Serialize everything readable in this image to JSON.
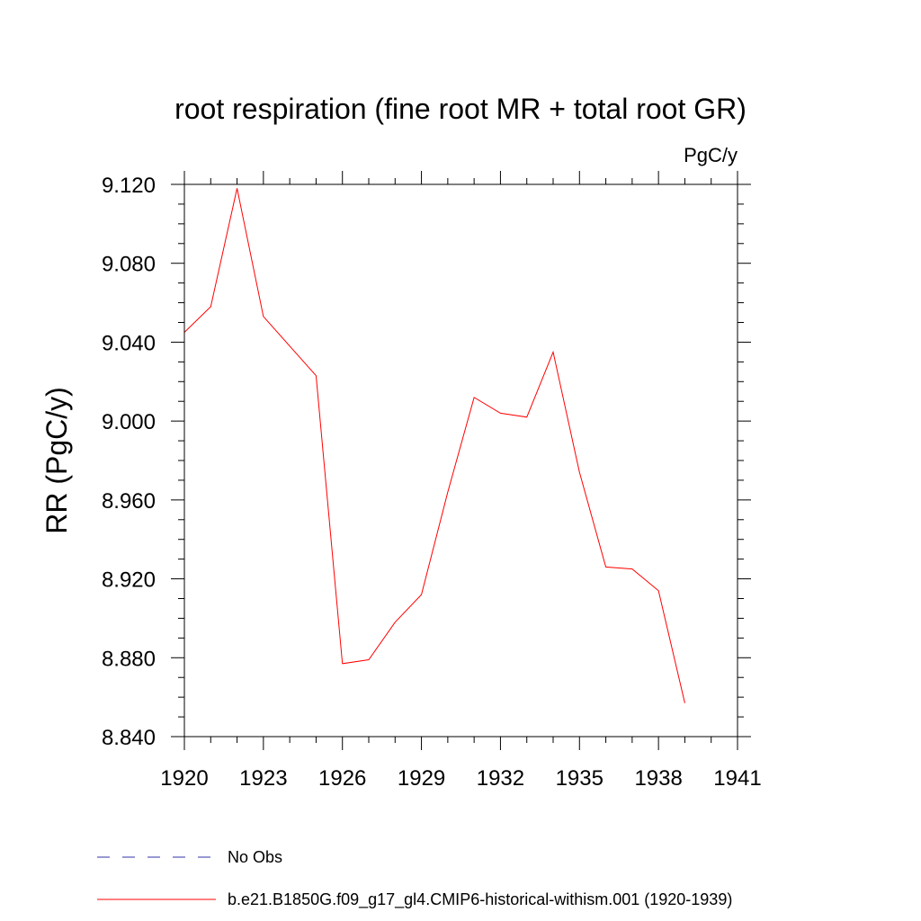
{
  "chart_data": {
    "type": "line",
    "title": "root respiration (fine root MR + total root GR)",
    "units": "PgC/y",
    "ylabel": "RR  (PgC/y)",
    "xlabel": "",
    "xlim": [
      1920,
      1941
    ],
    "ylim": [
      8.84,
      9.12
    ],
    "x_ticks": [
      1920,
      1923,
      1926,
      1929,
      1932,
      1935,
      1938,
      1941
    ],
    "x_tick_labels": [
      "1920",
      "1923",
      "1926",
      "1929",
      "1932",
      "1935",
      "1938",
      "1941"
    ],
    "y_ticks": [
      8.84,
      8.88,
      8.92,
      8.96,
      9.0,
      9.04,
      9.08,
      9.12
    ],
    "y_tick_labels": [
      "8.840",
      "8.880",
      "8.920",
      "8.960",
      "9.000",
      "9.040",
      "9.080",
      "9.120"
    ],
    "grid": false,
    "legend_position": "bottom-left",
    "series": [
      {
        "name": "b.e21.B1850G.f09_g17_gl4.CMIP6-historical-withism.001 (1920-1939)",
        "color": "#ff0000",
        "style": "solid",
        "x": [
          1920,
          1921,
          1922,
          1923,
          1924,
          1925,
          1926,
          1927,
          1928,
          1929,
          1930,
          1931,
          1932,
          1933,
          1934,
          1935,
          1936,
          1937,
          1938,
          1939
        ],
        "y": [
          9.045,
          9.058,
          9.118,
          9.053,
          9.038,
          9.023,
          8.877,
          8.879,
          8.898,
          8.912,
          8.964,
          9.012,
          9.004,
          9.002,
          9.035,
          8.974,
          8.926,
          8.925,
          8.914,
          8.857
        ]
      }
    ],
    "legend": [
      {
        "label": "No Obs",
        "color": "#3333aa",
        "style": "dashed"
      },
      {
        "label": "b.e21.B1850G.f09_g17_gl4.CMIP6-historical-withism.001 (1920-1939)",
        "color": "#ff0000",
        "style": "solid"
      }
    ]
  }
}
